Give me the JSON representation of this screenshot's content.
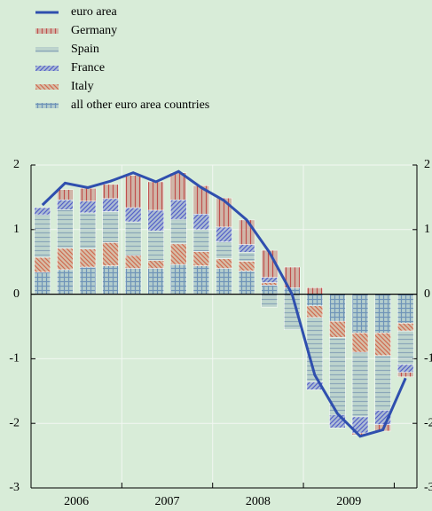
{
  "chart_data": {
    "type": "bar",
    "categories": [
      null,
      null,
      null,
      null,
      null,
      null,
      null,
      null,
      null,
      null,
      null,
      null,
      null,
      null,
      null,
      null,
      null
    ],
    "year_labels": [
      "2006",
      "2007",
      "2008",
      "2009"
    ],
    "series": [
      {
        "name": "euro area",
        "type": "line",
        "color": "#2f4fae",
        "values": [
          1.38,
          1.72,
          1.65,
          1.75,
          1.88,
          1.74,
          1.9,
          1.65,
          1.45,
          1.15,
          0.65,
          0.0,
          -1.25,
          -1.85,
          -2.2,
          -2.1,
          -1.3
        ]
      },
      {
        "name": "Germany",
        "color": "#c0504d",
        "pattern": "vertical",
        "values": [
          0,
          0.16,
          0.2,
          0.22,
          0.5,
          0.44,
          0.42,
          0.44,
          0.45,
          0.38,
          0.42,
          0.32,
          0.1,
          0,
          -0.03,
          -0.1,
          -0.07
        ]
      },
      {
        "name": "Spain",
        "color": "#8aa6b8",
        "pattern": "horizontal",
        "values": [
          0.66,
          0.6,
          0.56,
          0.48,
          0.52,
          0.46,
          0.38,
          0.34,
          0.26,
          0.14,
          -0.2,
          -0.55,
          -1.0,
          -1.2,
          -1.0,
          -0.85,
          -0.52
        ]
      },
      {
        "name": "France",
        "color": "#5560c8",
        "pattern": "diagonal",
        "values": [
          0.11,
          0.15,
          0.18,
          0.2,
          0.22,
          0.32,
          0.3,
          0.24,
          0.23,
          0.12,
          0.08,
          0,
          -0.12,
          -0.2,
          -0.25,
          -0.22,
          -0.12
        ]
      },
      {
        "name": "Italy",
        "color": "#d06a50",
        "pattern": "antidiagonal",
        "values": [
          0.23,
          0.33,
          0.28,
          0.36,
          0.2,
          0.12,
          0.32,
          0.22,
          0.15,
          0.15,
          0.04,
          0,
          -0.18,
          -0.25,
          -0.3,
          -0.35,
          -0.12
        ]
      },
      {
        "name": "all other euro area countries",
        "color": "#6f94b8",
        "pattern": "grid",
        "values": [
          0.34,
          0.38,
          0.42,
          0.44,
          0.4,
          0.4,
          0.46,
          0.44,
          0.4,
          0.36,
          0.14,
          0.1,
          -0.18,
          -0.42,
          -0.6,
          -0.6,
          -0.45
        ]
      }
    ],
    "stack_order": [
      "all other euro area countries",
      "Italy",
      "Spain",
      "France",
      "Germany"
    ],
    "ylim": [
      -3,
      2
    ],
    "yticks": [
      -3,
      -2,
      -1,
      0,
      1,
      2
    ],
    "grid": true,
    "legend": "top-left"
  }
}
